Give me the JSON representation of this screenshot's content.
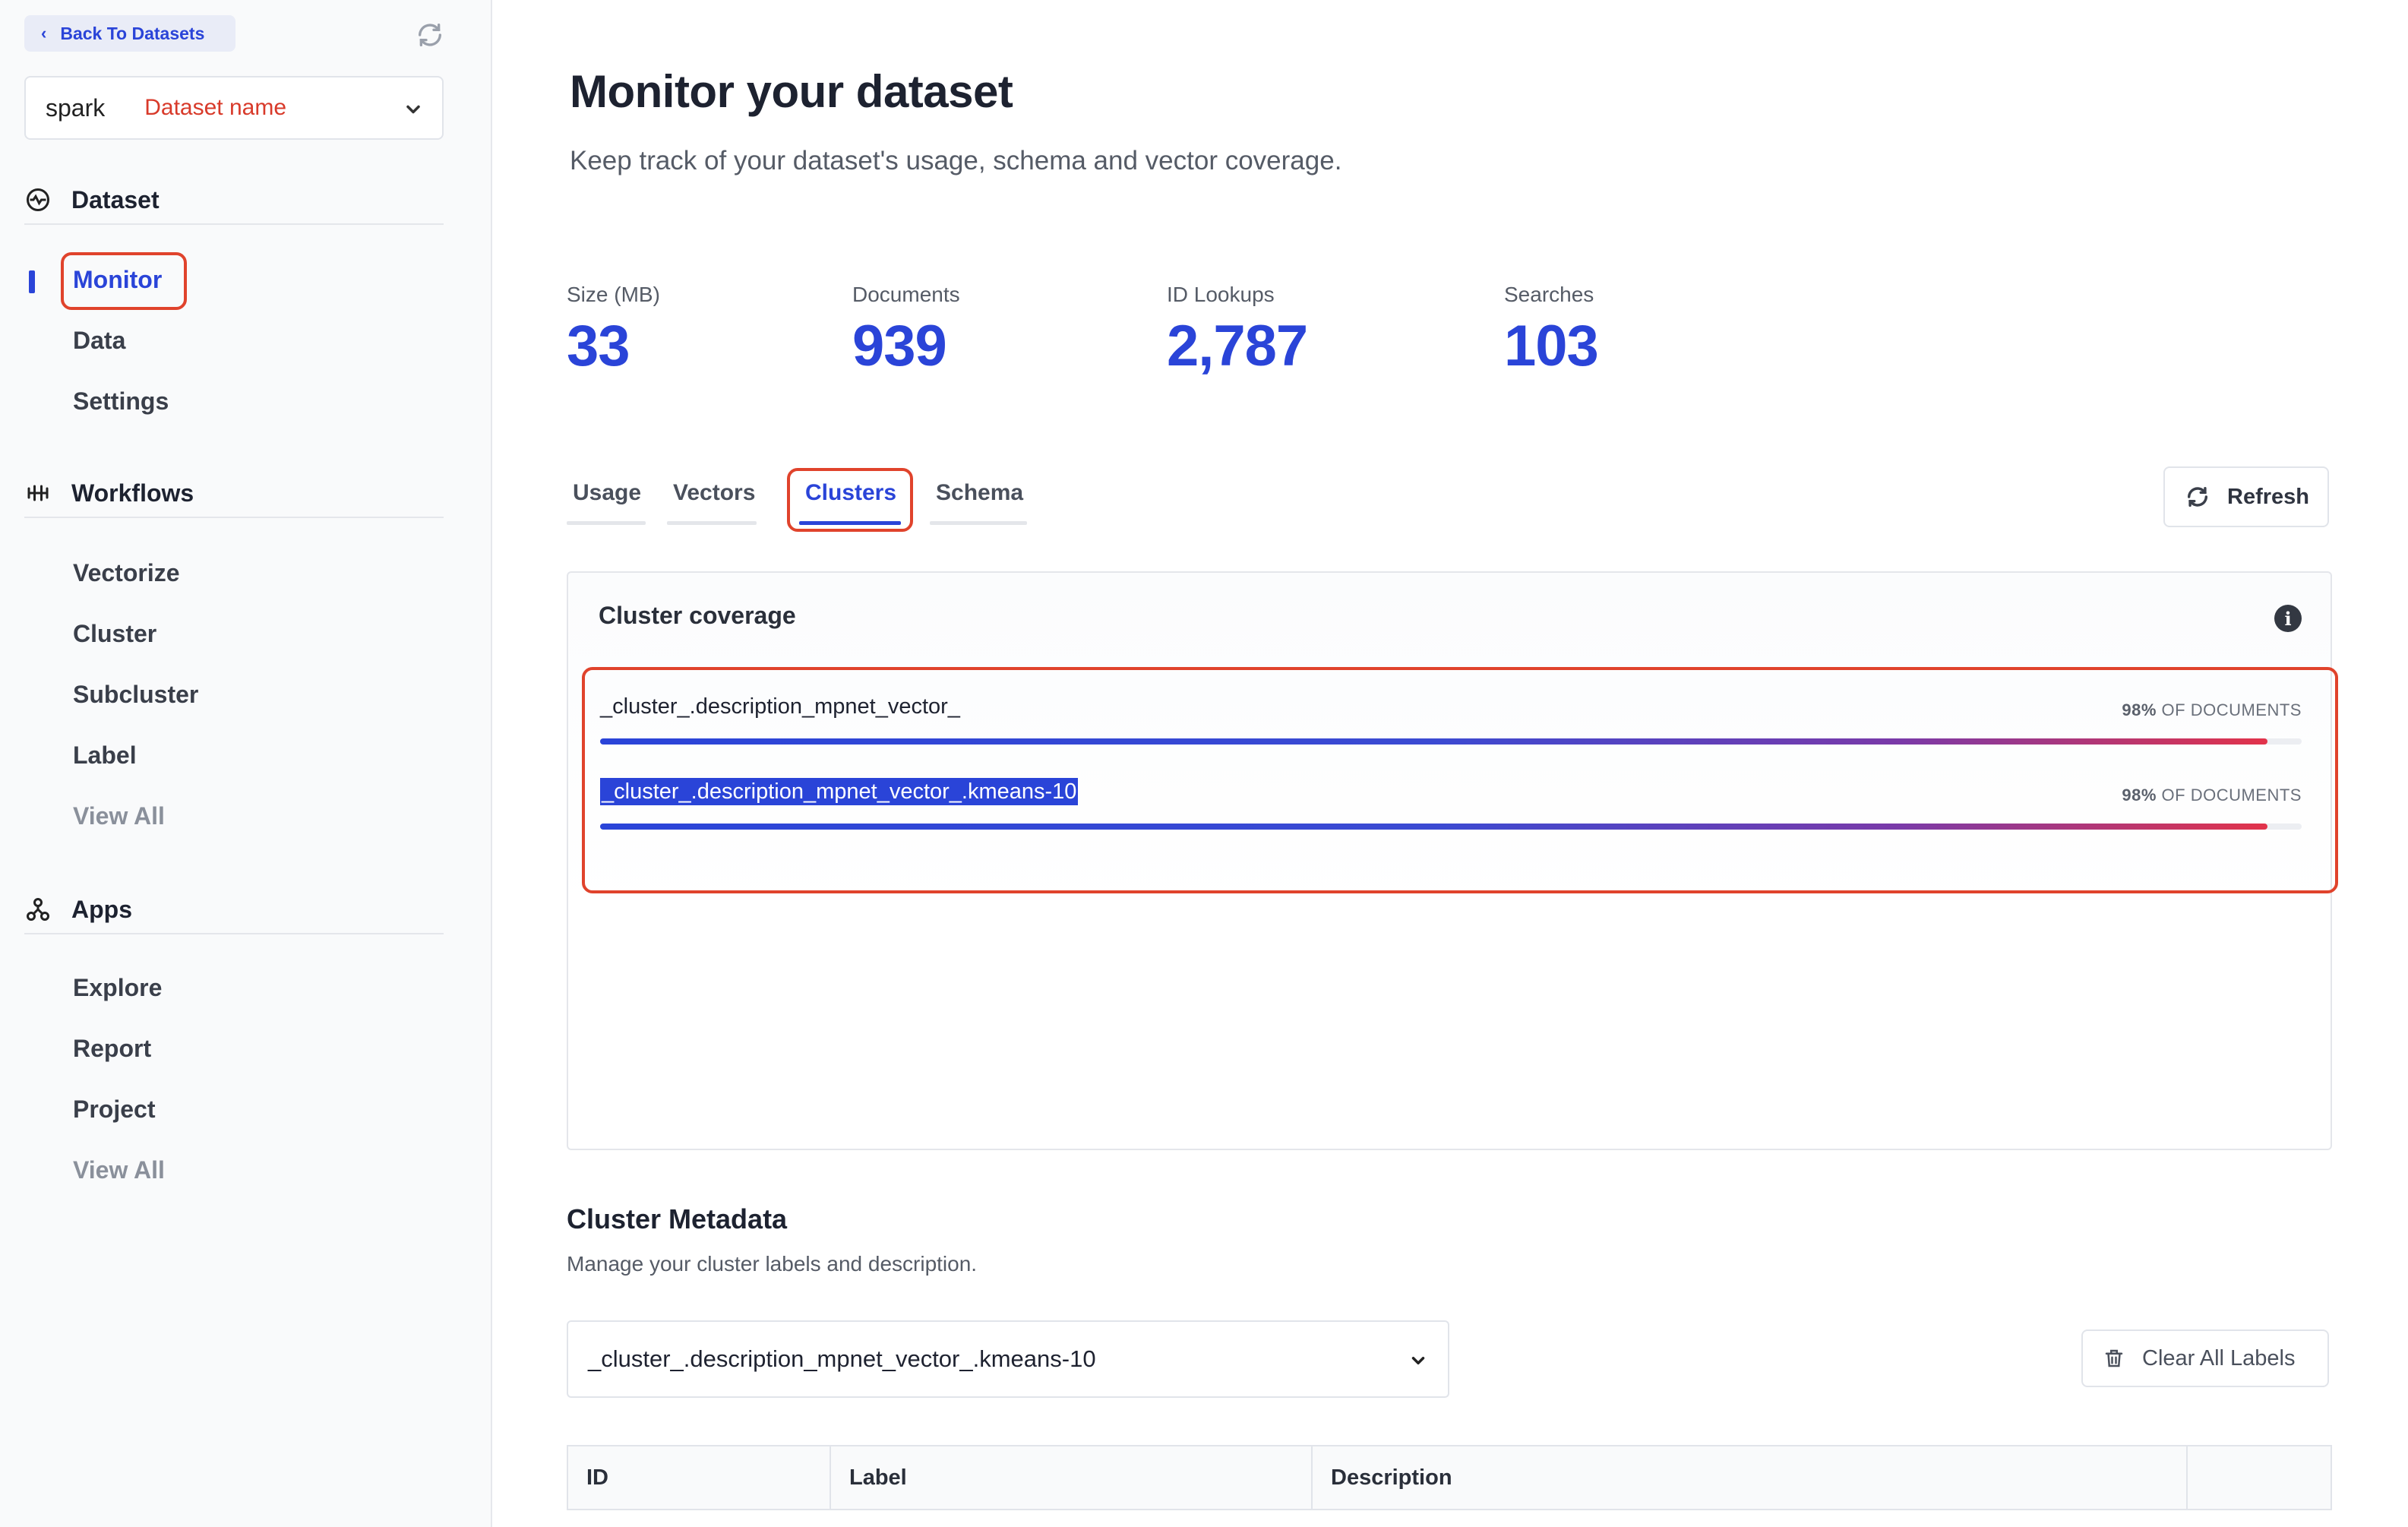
{
  "sidebar": {
    "back_label": "Back To Datasets",
    "dataset_prefix": "spark",
    "dataset_name": "Dataset name",
    "sections": [
      {
        "label": "Dataset",
        "icon": "monitor-heartbeat-icon",
        "items": [
          {
            "label": "Monitor",
            "active": true
          },
          {
            "label": "Data"
          },
          {
            "label": "Settings"
          }
        ]
      },
      {
        "label": "Workflows",
        "icon": "workflows-icon",
        "items": [
          {
            "label": "Vectorize"
          },
          {
            "label": "Cluster"
          },
          {
            "label": "Subcluster"
          },
          {
            "label": "Label"
          },
          {
            "label": "View All",
            "muted": true
          }
        ]
      },
      {
        "label": "Apps",
        "icon": "apps-icon",
        "items": [
          {
            "label": "Explore"
          },
          {
            "label": "Report"
          },
          {
            "label": "Project"
          },
          {
            "label": "View All",
            "muted": true
          }
        ]
      }
    ]
  },
  "header": {
    "title": "Monitor your dataset",
    "subtitle": "Keep track of your dataset's usage, schema and vector coverage."
  },
  "stats": [
    {
      "label": "Size (MB)",
      "value": "33"
    },
    {
      "label": "Documents",
      "value": "939"
    },
    {
      "label": "ID Lookups",
      "value": "2,787"
    },
    {
      "label": "Searches",
      "value": "103"
    }
  ],
  "tabs": [
    {
      "label": "Usage"
    },
    {
      "label": "Vectors"
    },
    {
      "label": "Clusters",
      "active": true
    },
    {
      "label": "Schema"
    }
  ],
  "refresh_label": "Refresh",
  "coverage": {
    "title": "Cluster coverage",
    "rows": [
      {
        "name": "_cluster_.description_mpnet_vector_",
        "percent_label": "98%",
        "suffix": "OF DOCUMENTS",
        "fraction": 0.98
      },
      {
        "name": "_cluster_.description_mpnet_vector_.kmeans-10",
        "percent_label": "98%",
        "suffix": "OF DOCUMENTS",
        "fraction": 0.98,
        "selected": true
      }
    ]
  },
  "metadata": {
    "title": "Cluster Metadata",
    "subtitle": "Manage your cluster labels and description.",
    "selected_field": "_cluster_.description_mpnet_vector_.kmeans-10",
    "clear_label": "Clear All Labels",
    "columns": [
      "ID",
      "Label",
      "Description",
      ""
    ]
  },
  "colors": {
    "accent": "#2a44d8",
    "highlight": "#e0432c",
    "gradient_end": "#e2334a"
  }
}
